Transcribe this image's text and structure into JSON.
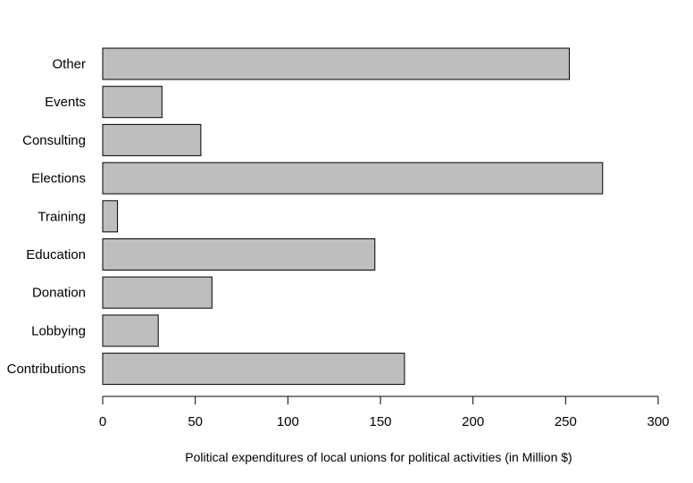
{
  "chart_data": {
    "type": "bar",
    "orientation": "horizontal",
    "categories": [
      "Contributions",
      "Lobbying",
      "Donation",
      "Education",
      "Training",
      "Elections",
      "Consulting",
      "Events",
      "Other"
    ],
    "values": [
      163,
      30,
      59,
      147,
      8,
      270,
      53,
      32,
      252
    ],
    "title": "",
    "xlabel": "Political expenditures of local unions for political activities (in Million $)",
    "ylabel": "",
    "xlim": [
      0,
      300
    ],
    "xticks": [
      0,
      50,
      100,
      150,
      200,
      250,
      300
    ],
    "grid": false,
    "bar_color": "#bebebe",
    "edge_color": "#000000"
  }
}
